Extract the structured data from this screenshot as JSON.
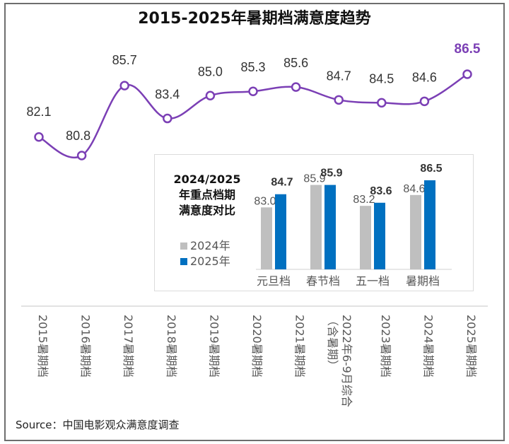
{
  "title": "2015-2025年暑期档满意度趋势",
  "source": "Source：中国电影观众满意度调查",
  "colors": {
    "line": "#7b3fb5",
    "highlight_label": "#7b3fb5",
    "bar_2024": "#bfbfbf",
    "bar_2025": "#0070c0",
    "axis": "#d9d9d9",
    "label_text": "#333333",
    "tick_text": "#595959"
  },
  "chart_data": [
    {
      "type": "line",
      "title": "2015-2025年暑期档满意度趋势",
      "xlabel": "",
      "ylabel": "",
      "categories": [
        "2015暑期档",
        "2016暑期档",
        "2017暑期档",
        "2018暑期档",
        "2019暑期档",
        "2020暑期档",
        "2021暑期档",
        "2022年6-9月综合（含暑期）",
        "2023暑期档",
        "2024暑期档",
        "2025暑期档"
      ],
      "values": [
        82.1,
        80.8,
        85.7,
        83.4,
        85.0,
        85.3,
        85.6,
        84.7,
        84.5,
        84.6,
        86.5
      ],
      "data_labels": [
        "82.1",
        "80.8",
        "85.7",
        "83.4",
        "85.0",
        "85.3",
        "85.6",
        "84.7",
        "84.5",
        "84.6",
        "86.5"
      ],
      "highlight_index": 10,
      "ylim": [
        78,
        88
      ],
      "grid": false,
      "smooth": true,
      "markers": "hollow-circle"
    },
    {
      "type": "bar",
      "title": "2024/2025年重点档期满意度对比",
      "title_lines": [
        "2024/2025",
        "年重点档期",
        "满意度对比"
      ],
      "categories": [
        "元旦档",
        "春节档",
        "五一档",
        "暑期档"
      ],
      "series": [
        {
          "name": "2024年",
          "values": [
            83.0,
            85.9,
            83.2,
            84.6
          ],
          "labels": [
            "83.0",
            "85.9",
            "83.2",
            "84.6"
          ]
        },
        {
          "name": "2025年",
          "values": [
            84.7,
            85.9,
            83.6,
            86.5
          ],
          "labels": [
            "84.7",
            "85.9",
            "83.6",
            "86.5"
          ]
        }
      ],
      "ylim": [
        75,
        87
      ],
      "legend": "left",
      "grid": false
    }
  ]
}
